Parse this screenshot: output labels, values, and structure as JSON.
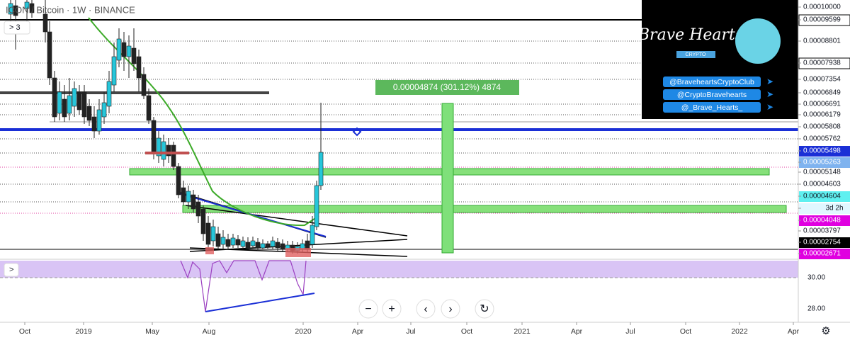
{
  "header": {
    "symbol": "ICON / Bitcoin · 1W · BINANCE",
    "indicators": "3"
  },
  "measure": "0.00004874 (301.12%) 4874",
  "banner": {
    "brand": "Brave Hearts",
    "sub": "CRYPTO",
    "links": [
      "@BraveheartsCryptoClub",
      "@CryptoBravehearts",
      "@_Brave_Hearts_"
    ]
  },
  "price_axis": [
    "0.00010000",
    "0.00009599",
    "0.00008801",
    "0.00007938",
    "0.00007354",
    "0.00006849",
    "0.00006691",
    "0.00006179",
    "0.00005808",
    "0.00005762",
    "0.00005498",
    "0.00005263",
    "0.00005148",
    "0.00004603",
    "0.00004604",
    "3d 2h",
    "0.00004048",
    "0.00003797",
    "0.00002754",
    "0.00002671"
  ],
  "rsi_axis": [
    "30.00",
    "28.00"
  ],
  "time_axis": [
    "Oct",
    "2019",
    "May",
    "Aug",
    "2020",
    "Apr",
    "Jul",
    "Oct",
    "2021",
    "Apr",
    "Jul",
    "Oct",
    "2022",
    "Apr"
  ]
}
